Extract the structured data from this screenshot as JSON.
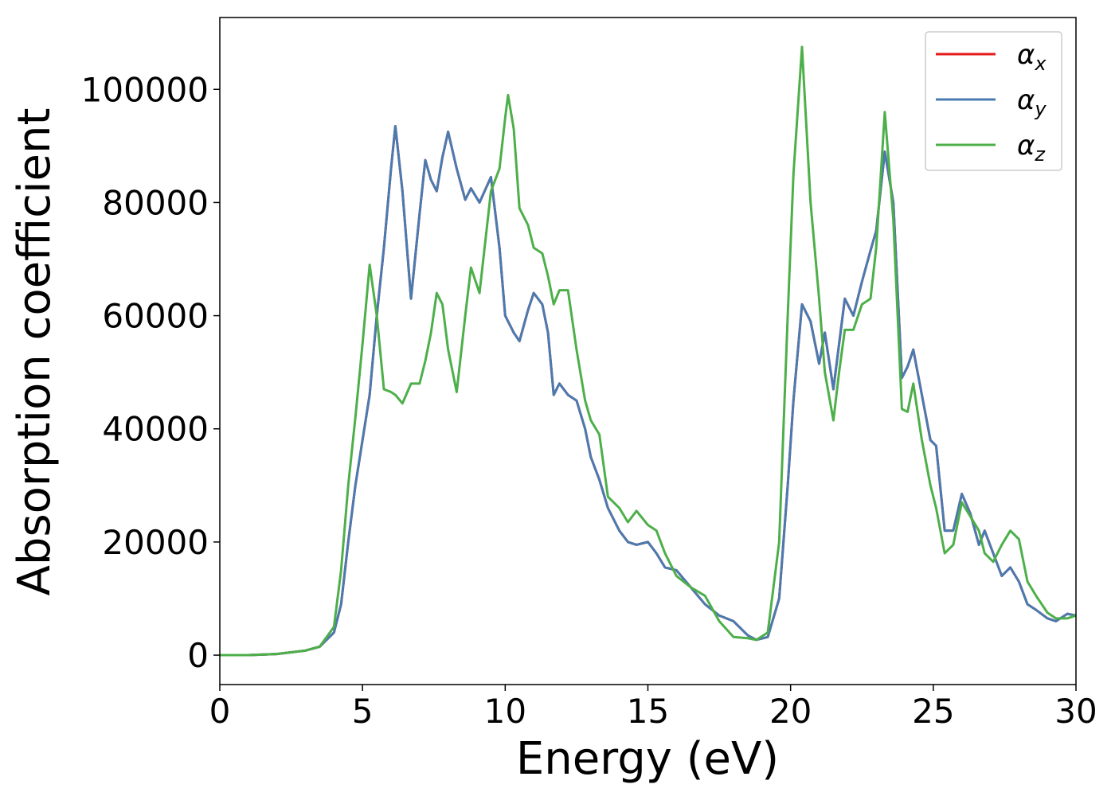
{
  "chart_data": {
    "type": "line",
    "xlabel": "Energy (eV)",
    "ylabel": "Absorption coefficient",
    "xlim": [
      0,
      30
    ],
    "xticks": [
      0,
      5,
      10,
      15,
      20,
      25,
      30
    ],
    "ylim": [
      -5200,
      112700
    ],
    "yticks": [
      0,
      20000,
      40000,
      60000,
      80000,
      100000
    ],
    "legend": "upper right",
    "grid": false,
    "x": [
      0,
      1,
      2,
      3,
      3.5,
      4,
      4.25,
      4.5,
      4.75,
      5,
      5.25,
      5.5,
      5.75,
      6,
      6.15,
      6.4,
      6.7,
      7,
      7.2,
      7.4,
      7.6,
      7.8,
      8,
      8.3,
      8.6,
      8.8,
      9.1,
      9.5,
      9.8,
      10,
      10.1,
      10.3,
      10.5,
      10.8,
      11,
      11.3,
      11.5,
      11.7,
      11.9,
      12.2,
      12.5,
      12.8,
      13,
      13.3,
      13.6,
      14,
      14.3,
      14.6,
      15,
      15.3,
      15.6,
      16,
      16.5,
      17,
      17.5,
      18,
      18.5,
      18.8,
      19.2,
      19.6,
      19.9,
      20.1,
      20.4,
      20.7,
      21,
      21.2,
      21.5,
      21.7,
      21.9,
      22.2,
      22.5,
      22.8,
      23,
      23.3,
      23.6,
      23.9,
      24.1,
      24.3,
      24.6,
      24.9,
      25.1,
      25.4,
      25.7,
      26,
      26.3,
      26.6,
      26.8,
      27.1,
      27.4,
      27.7,
      28,
      28.3,
      28.6,
      29,
      29.3,
      29.7,
      30
    ],
    "series": [
      {
        "name": "αx",
        "color": "#e41a1c",
        "values": [
          0,
          0,
          200,
          800,
          1500,
          4000,
          9000,
          20000,
          30000,
          38000,
          46000,
          60000,
          72000,
          86000,
          93500,
          82000,
          63000,
          78000,
          87500,
          84000,
          82000,
          88000,
          92500,
          86000,
          80500,
          82500,
          80000,
          84500,
          72000,
          60000,
          59000,
          57000,
          55500,
          61000,
          64000,
          62000,
          57000,
          46000,
          48000,
          46000,
          45000,
          40000,
          35000,
          31000,
          26000,
          22000,
          20000,
          19500,
          20000,
          18000,
          15500,
          15000,
          12000,
          9000,
          7000,
          6000,
          3500,
          2700,
          3200,
          10000,
          30000,
          45000,
          62000,
          59000,
          51500,
          57000,
          47000,
          55000,
          63000,
          60000,
          66000,
          71500,
          75000,
          89000,
          80000,
          49000,
          51000,
          54000,
          46000,
          38000,
          37000,
          22000,
          22000,
          28500,
          25000,
          19500,
          22000,
          18000,
          14000,
          15500,
          13000,
          9000,
          8000,
          6500,
          6000,
          7300,
          7000
        ]
      },
      {
        "name": "αy",
        "color": "#4a7bb0",
        "values": [
          0,
          0,
          200,
          800,
          1500,
          4000,
          9000,
          20000,
          30000,
          38000,
          46000,
          60000,
          72000,
          86000,
          93500,
          82000,
          63000,
          78000,
          87500,
          84000,
          82000,
          88000,
          92500,
          86000,
          80500,
          82500,
          80000,
          84500,
          72000,
          60000,
          59000,
          57000,
          55500,
          61000,
          64000,
          62000,
          57000,
          46000,
          48000,
          46000,
          45000,
          40000,
          35000,
          31000,
          26000,
          22000,
          20000,
          19500,
          20000,
          18000,
          15500,
          15000,
          12000,
          9000,
          7000,
          6000,
          3500,
          2700,
          3200,
          10000,
          30000,
          45000,
          62000,
          59000,
          51500,
          57000,
          47000,
          55000,
          63000,
          60000,
          66000,
          71500,
          75000,
          89000,
          80000,
          49000,
          51000,
          54000,
          46000,
          38000,
          37000,
          22000,
          22000,
          28500,
          25000,
          19500,
          22000,
          18000,
          14000,
          15500,
          13000,
          9000,
          8000,
          6500,
          6000,
          7300,
          7000
        ]
      },
      {
        "name": "αz",
        "color": "#4daf4a",
        "values": [
          0,
          0,
          200,
          800,
          1500,
          5000,
          15000,
          30000,
          42000,
          55000,
          69000,
          60000,
          47000,
          46500,
          46000,
          44500,
          48000,
          48000,
          52000,
          57000,
          64000,
          62000,
          54000,
          46500,
          60000,
          68500,
          64000,
          82000,
          86000,
          95000,
          99000,
          93000,
          79000,
          76000,
          72000,
          71000,
          67000,
          62000,
          64500,
          64500,
          54000,
          45000,
          41500,
          39000,
          28000,
          26000,
          23500,
          25500,
          23000,
          22000,
          18000,
          14000,
          12000,
          10500,
          6000,
          3200,
          3000,
          2700,
          4000,
          20000,
          60000,
          85000,
          107500,
          80000,
          63000,
          50000,
          41500,
          50000,
          57500,
          57500,
          62000,
          63000,
          72000,
          96000,
          77000,
          43500,
          43000,
          48000,
          38000,
          30000,
          26000,
          18000,
          19500,
          27000,
          24500,
          22000,
          18000,
          16500,
          19500,
          22000,
          20500,
          13000,
          10500,
          7500,
          6500,
          6500,
          7000
        ]
      }
    ]
  }
}
